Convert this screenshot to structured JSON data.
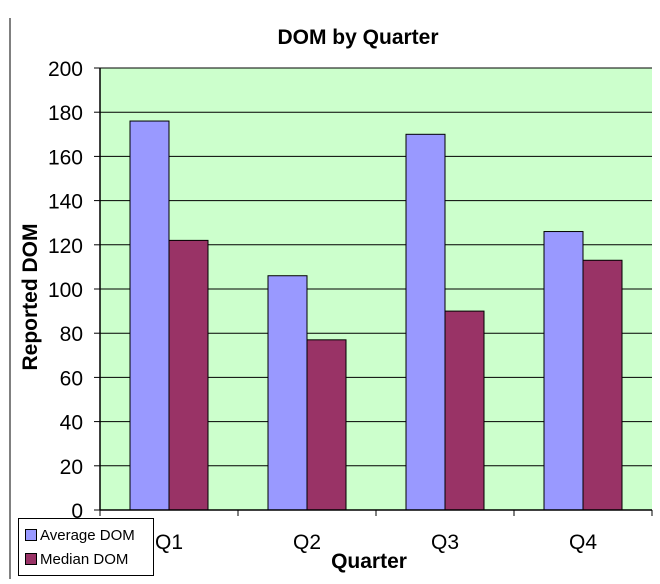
{
  "chart_data": {
    "type": "bar",
    "title": "DOM by Quarter",
    "xlabel": "Quarter",
    "ylabel": "Reported DOM",
    "categories": [
      "Q1",
      "Q2",
      "Q3",
      "Q4"
    ],
    "series": [
      {
        "name": "Average DOM",
        "values": [
          176,
          106,
          170,
          126
        ],
        "color": "#9999ff"
      },
      {
        "name": "Median DOM",
        "values": [
          122,
          77,
          90,
          113
        ],
        "color": "#993366"
      }
    ],
    "ylim": [
      0,
      200
    ],
    "yticks": [
      0,
      20,
      40,
      60,
      80,
      100,
      120,
      140,
      160,
      180,
      200
    ],
    "grid": true,
    "plot_background": "#ccffcc",
    "legend_position": "bottom-left"
  }
}
